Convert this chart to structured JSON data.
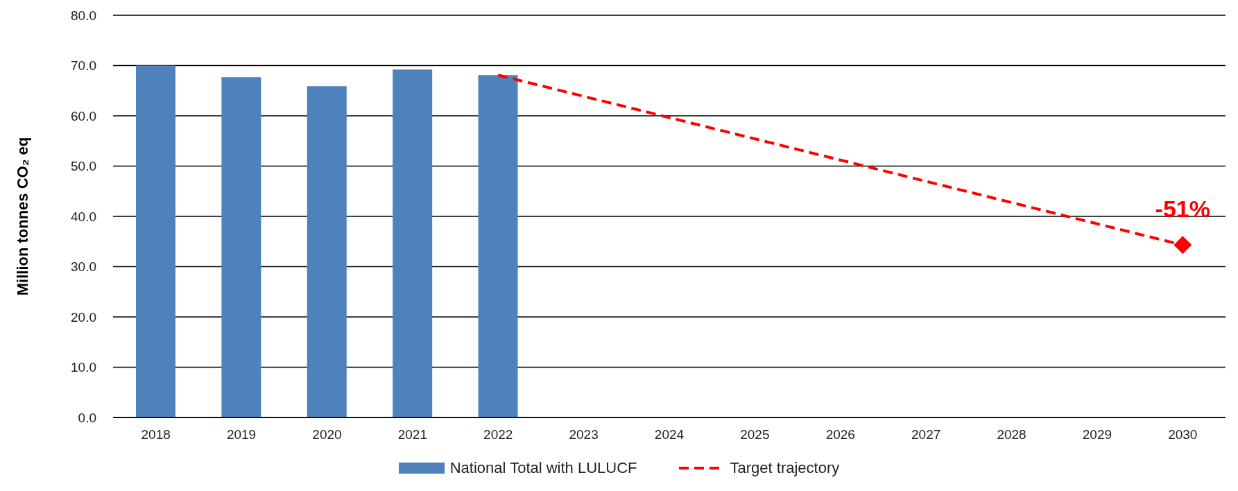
{
  "chart_data": {
    "type": "bar",
    "ylabel": "Million tonnes CO₂ eq",
    "categories": [
      "2018",
      "2019",
      "2020",
      "2021",
      "2022",
      "2023",
      "2024",
      "2025",
      "2026",
      "2027",
      "2028",
      "2029",
      "2030"
    ],
    "series": [
      {
        "name": "National Total with LULUCF",
        "color": "#4f81bd",
        "values": [
          70.0,
          67.7,
          65.9,
          69.2,
          68.1,
          null,
          null,
          null,
          null,
          null,
          null,
          null,
          null
        ]
      },
      {
        "name": "Target trajectory",
        "type": "line",
        "color": "#ff0000",
        "line_style": "dashed",
        "marker": "none",
        "values": [
          null,
          null,
          null,
          null,
          68.1,
          null,
          null,
          null,
          null,
          null,
          null,
          null,
          34.3
        ]
      },
      {
        "type": "scatter",
        "color": "#ff0000",
        "marker": "diamond",
        "values": [
          null,
          null,
          null,
          null,
          null,
          null,
          null,
          null,
          null,
          null,
          null,
          null,
          34.3
        ]
      }
    ],
    "annotations": [
      {
        "text": "-51%",
        "x": "2030",
        "y": 34.3
      }
    ],
    "ylim": [
      0,
      80
    ],
    "yticks": [
      {
        "value": 0,
        "label": "0.0"
      },
      {
        "value": 10,
        "label": "10.0"
      },
      {
        "value": 20,
        "label": "20.0"
      },
      {
        "value": 30,
        "label": "30.0"
      },
      {
        "value": 40,
        "label": "40.0"
      },
      {
        "value": 50,
        "label": "50.0"
      },
      {
        "value": 60,
        "label": "60.0"
      },
      {
        "value": 70,
        "label": "70.0"
      },
      {
        "value": 80,
        "label": "80.0"
      }
    ],
    "grid": "y",
    "legend": "bottom"
  }
}
